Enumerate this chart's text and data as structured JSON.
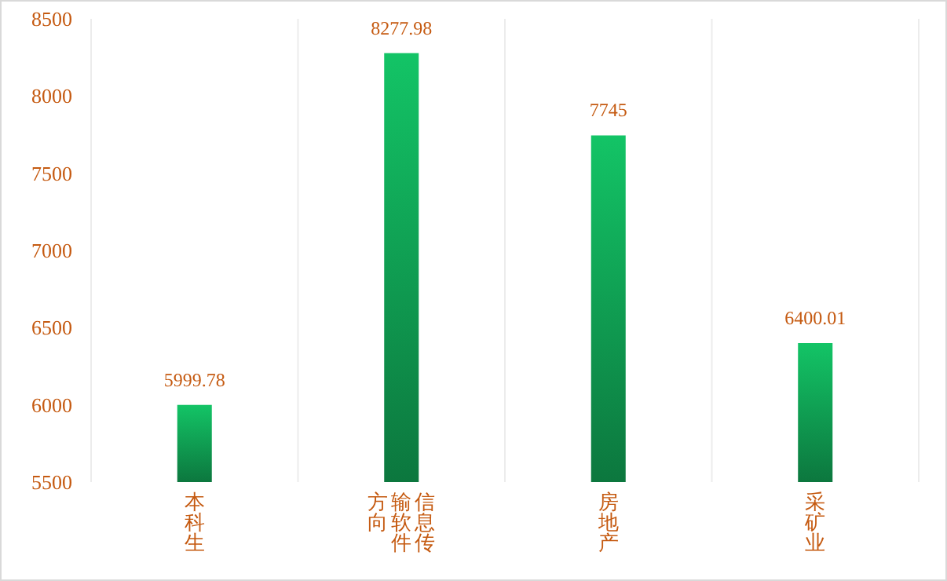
{
  "chart_data": {
    "type": "bar",
    "categories": [
      "本科生",
      "信息传输软件方向",
      "房地产",
      "采矿业"
    ],
    "values": [
      5999.78,
      8277.98,
      7745,
      6400.01
    ],
    "color": "#13c466",
    "ylim": [
      5500,
      8500
    ],
    "yticks": [
      5500,
      6000,
      6500,
      7000,
      7500,
      8000,
      8500
    ],
    "grid": "x",
    "data_labels": true
  }
}
